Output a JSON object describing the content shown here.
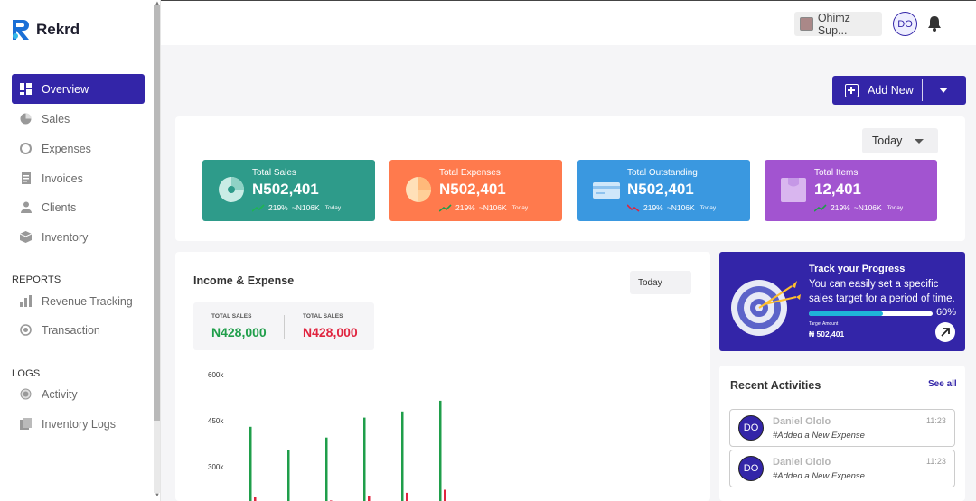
{
  "app": {
    "name": "Rekrd"
  },
  "sidebar": {
    "items": [
      {
        "label": "Overview",
        "icon": "grid-icon",
        "active": true
      },
      {
        "label": "Sales",
        "icon": "pie-icon"
      },
      {
        "label": "Expenses",
        "icon": "wallet-icon"
      },
      {
        "label": "Invoices",
        "icon": "invoice-icon"
      },
      {
        "label": "Clients",
        "icon": "user-icon"
      },
      {
        "label": "Inventory",
        "icon": "box-icon"
      }
    ],
    "reports_label": "REPORTS",
    "reports": [
      {
        "label": "Revenue Tracking",
        "icon": "chart-icon"
      },
      {
        "label": "Transaction",
        "icon": "search-icon"
      }
    ],
    "logs_label": "LOGS",
    "logs": [
      {
        "label": "Activity",
        "icon": "activity-icon"
      },
      {
        "label": "Inventory Logs",
        "icon": "log-icon"
      }
    ]
  },
  "header": {
    "store": "Ohimz Sup...",
    "avatar": "DO"
  },
  "actions": {
    "add_new": "Add New"
  },
  "stats": {
    "period": "Today",
    "cards": [
      {
        "title": "Total Sales",
        "value": "N502,401",
        "pct": "219%",
        "delta": "~N106K",
        "period": "Today",
        "color": "#2e9b8a",
        "trend": "up"
      },
      {
        "title": "Total Expenses",
        "value": "N502,401",
        "pct": "219%",
        "delta": "~N106K",
        "period": "Today",
        "color": "#ff7a4d",
        "trend": "up"
      },
      {
        "title": "Total Outstanding",
        "value": "N502,401",
        "pct": "219%",
        "delta": "~N106K",
        "period": "Today",
        "color": "#3a98e0",
        "trend": "down"
      },
      {
        "title": "Total Items",
        "value": "12,401",
        "pct": "219%",
        "delta": "~N106K",
        "period": "Today",
        "color": "#a254d0",
        "trend": "up"
      }
    ]
  },
  "income": {
    "title": "Income & Expense",
    "period": "Today",
    "sales_label_1": "TOTAL SALES",
    "sales_value_1": "N428,000",
    "sales_label_2": "TOTAL SALES",
    "sales_value_2": "N428,000"
  },
  "chart_data": {
    "type": "bar",
    "ylabel": "",
    "yticks": [
      "600k",
      "450k",
      "300k"
    ],
    "ylim": [
      150000,
      600000
    ],
    "series": [
      {
        "values": [
          430000,
          355000,
          395000,
          460000,
          480000,
          515000
        ],
        "color": "#1f9e4a"
      },
      {
        "values": [
          200000,
          185000,
          190000,
          205000,
          215000,
          225000
        ],
        "color": "#e0243f"
      }
    ]
  },
  "progress": {
    "title": "Track your Progress",
    "description": "You can easily set a specific sales target for a period of time.",
    "percent": 0.6,
    "percent_label": "60%",
    "target_label": "Target Amount",
    "target_value": "₦ 502,401"
  },
  "activities": {
    "title": "Recent Activities",
    "see_all": "See all",
    "items": [
      {
        "avatar": "DO",
        "name": "Daniel Ololo",
        "desc": "#Added a New Expense",
        "time": "11:23"
      },
      {
        "avatar": "DO",
        "name": "Daniel Ololo",
        "desc": "#Added a New Expense",
        "time": "11:23"
      }
    ]
  }
}
